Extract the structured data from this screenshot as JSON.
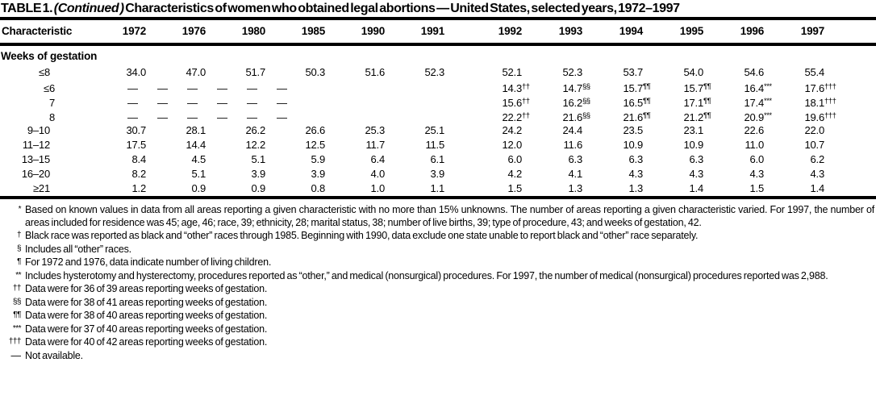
{
  "title": {
    "table_number": "TABLE 1.",
    "continued": "(Continued )",
    "text": "Characteristics of women who obtained legal abortions — United States, selected years, 1972–1997"
  },
  "table": {
    "columns": [
      "Characteristic",
      "1972",
      "1976",
      "1980",
      "1985",
      "1990",
      "1991",
      "1992",
      "1993",
      "1994",
      "1995",
      "1996",
      "1997"
    ],
    "section": "Weeks of gestation",
    "rows": [
      {
        "label": "≤8",
        "indent": 1,
        "values": [
          "34.0",
          "47.0",
          "51.7",
          "50.3",
          "51.6",
          "52.3",
          "52.1",
          "52.3",
          "53.7",
          "54.0",
          "54.6",
          "55.4"
        ]
      },
      {
        "label": "≤6",
        "indent": 2,
        "values": [
          "—",
          "—",
          "—",
          "—",
          "—",
          "—",
          "14.3††",
          "14.7§§",
          "15.7¶¶",
          "15.7¶¶",
          "16.4***",
          "17.6†††"
        ]
      },
      {
        "label": "7",
        "indent": 2,
        "values": [
          "—",
          "—",
          "—",
          "—",
          "—",
          "—",
          "15.6††",
          "16.2§§",
          "16.5¶¶",
          "17.1¶¶",
          "17.4***",
          "18.1†††"
        ]
      },
      {
        "label": "8",
        "indent": 2,
        "values": [
          "—",
          "—",
          "—",
          "—",
          "—",
          "—",
          "22.2††",
          "21.6§§",
          "21.6¶¶",
          "21.2¶¶",
          "20.9***",
          "19.6†††"
        ]
      },
      {
        "label": "9–10",
        "indent": 1,
        "values": [
          "30.7",
          "28.1",
          "26.2",
          "26.6",
          "25.3",
          "25.1",
          "24.2",
          "24.4",
          "23.5",
          "23.1",
          "22.6",
          "22.0"
        ]
      },
      {
        "label": "11–12",
        "indent": 1,
        "values": [
          "17.5",
          "14.4",
          "12.2",
          "12.5",
          "11.7",
          "11.5",
          "12.0",
          "11.6",
          "10.9",
          "10.9",
          "11.0",
          "10.7"
        ]
      },
      {
        "label": "13–15",
        "indent": 1,
        "values": [
          "8.4",
          "4.5",
          "5.1",
          "5.9",
          "6.4",
          "6.1",
          "6.0",
          "6.3",
          "6.3",
          "6.3",
          "6.0",
          "6.2"
        ]
      },
      {
        "label": "16–20",
        "indent": 1,
        "values": [
          "8.2",
          "5.1",
          "3.9",
          "3.9",
          "4.0",
          "3.9",
          "4.2",
          "4.1",
          "4.3",
          "4.3",
          "4.3",
          "4.3"
        ]
      },
      {
        "label": "≥21",
        "indent": 1,
        "values": [
          "1.2",
          "0.9",
          "0.9",
          "0.8",
          "1.0",
          "1.1",
          "1.5",
          "1.3",
          "1.3",
          "1.4",
          "1.5",
          "1.4"
        ]
      }
    ]
  },
  "footnotes": [
    {
      "marker": "*",
      "text": "Based on known values in data from all areas reporting a given characteristic with no more than 15% unknowns. The number of areas reporting a given characteristic varied. For 1997, the number of areas included for residence was 45; age, 46; race, 39; ethnicity, 28; marital status, 38; number of live births, 39; type of procedure, 43; and weeks of gestation, 42."
    },
    {
      "marker": "†",
      "text": "Black race was reported as black and “other” races through 1985. Beginning with 1990, data exclude one state unable to report black and “other” race separately."
    },
    {
      "marker": "§",
      "text": "Includes all “other” races."
    },
    {
      "marker": "¶",
      "text": "For 1972 and 1976, data indicate number of living children."
    },
    {
      "marker": "**",
      "text": "Includes hysterotomy and hysterectomy, procedures reported as “other,” and medical (nonsurgical) procedures. For 1997, the number of medical (nonsurgical) procedures reported was 2,988."
    },
    {
      "marker": "††",
      "text": "Data were for 36 of 39 areas reporting weeks of gestation."
    },
    {
      "marker": "§§",
      "text": "Data were for 38 of 41 areas reporting weeks of gestation."
    },
    {
      "marker": "¶¶",
      "text": "Data were for 38 of 40 areas reporting weeks of gestation."
    },
    {
      "marker": "***",
      "text": "Data were for 37 of 40 areas reporting weeks of gestation."
    },
    {
      "marker": "†††",
      "text": "Data were for 40 of 42 areas reporting weeks of gestation."
    },
    {
      "marker": "—",
      "text": "Not available."
    }
  ]
}
